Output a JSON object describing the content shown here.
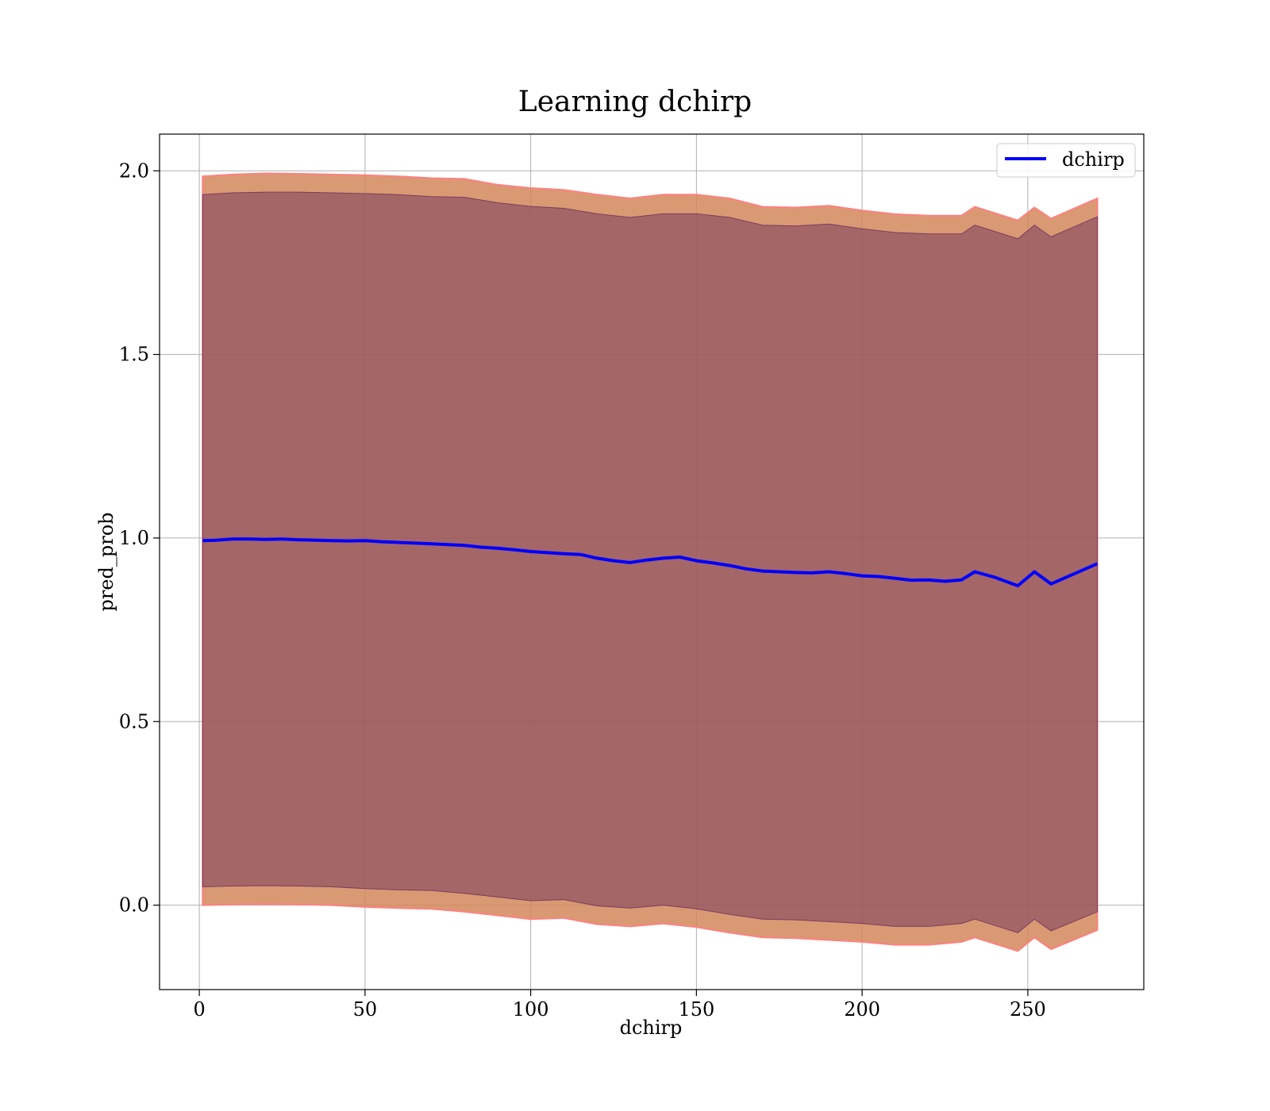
{
  "chart_data": {
    "type": "line",
    "title": "Learning dchirp",
    "xlabel": "dchirp",
    "ylabel": "pred_prob",
    "xlim": [
      -12,
      285
    ],
    "ylim": [
      -0.23,
      2.1
    ],
    "xticks": [
      0,
      50,
      100,
      150,
      200,
      250
    ],
    "yticks": [
      0.0,
      0.5,
      1.0,
      1.5,
      2.0
    ],
    "xtick_labels": [
      "0",
      "50",
      "100",
      "150",
      "200",
      "250"
    ],
    "ytick_labels": [
      "0.0",
      "0.5",
      "1.0",
      "1.5",
      "2.0"
    ],
    "grid": true,
    "legend_position": "top-right",
    "series": [
      {
        "name": "dchirp",
        "color": "#0000ff",
        "x": [
          1,
          5,
          10,
          15,
          20,
          25,
          30,
          35,
          40,
          45,
          50,
          55,
          60,
          65,
          70,
          75,
          80,
          85,
          90,
          95,
          100,
          105,
          110,
          115,
          120,
          125,
          130,
          135,
          140,
          145,
          150,
          155,
          160,
          165,
          170,
          175,
          180,
          185,
          190,
          195,
          200,
          205,
          210,
          215,
          220,
          225,
          230,
          234,
          240,
          247,
          252,
          257,
          271
        ],
        "y": [
          0.993,
          0.994,
          0.997,
          0.997,
          0.996,
          0.997,
          0.995,
          0.994,
          0.993,
          0.992,
          0.993,
          0.99,
          0.988,
          0.986,
          0.984,
          0.982,
          0.98,
          0.975,
          0.972,
          0.968,
          0.963,
          0.96,
          0.957,
          0.955,
          0.945,
          0.938,
          0.933,
          0.94,
          0.945,
          0.948,
          0.938,
          0.932,
          0.925,
          0.916,
          0.91,
          0.908,
          0.906,
          0.905,
          0.908,
          0.903,
          0.897,
          0.895,
          0.89,
          0.885,
          0.886,
          0.882,
          0.886,
          0.908,
          0.893,
          0.87,
          0.908,
          0.875,
          0.93
        ]
      }
    ],
    "bands": [
      {
        "label": "",
        "color": "#d2875a",
        "edge_color": "#ff8080",
        "x": [
          1,
          10,
          20,
          30,
          40,
          50,
          60,
          70,
          80,
          90,
          100,
          110,
          120,
          130,
          140,
          150,
          160,
          170,
          180,
          190,
          200,
          210,
          220,
          230,
          234,
          247,
          252,
          257,
          271
        ],
        "upper": [
          1.985,
          1.99,
          1.993,
          1.992,
          1.99,
          1.988,
          1.985,
          1.98,
          1.978,
          1.962,
          1.953,
          1.948,
          1.935,
          1.925,
          1.935,
          1.935,
          1.925,
          1.902,
          1.9,
          1.905,
          1.892,
          1.882,
          1.878,
          1.878,
          1.902,
          1.865,
          1.9,
          1.87,
          1.925
        ],
        "lower": [
          0.0,
          0.002,
          0.003,
          0.002,
          0.0,
          -0.005,
          -0.008,
          -0.01,
          -0.018,
          -0.028,
          -0.038,
          -0.035,
          -0.052,
          -0.058,
          -0.05,
          -0.06,
          -0.075,
          -0.088,
          -0.09,
          -0.095,
          -0.1,
          -0.108,
          -0.108,
          -0.1,
          -0.088,
          -0.125,
          -0.088,
          -0.12,
          -0.068
        ]
      },
      {
        "label": "",
        "color": "#7a3c5f",
        "edge_color": "#7a3c5f",
        "x": [
          1,
          10,
          20,
          30,
          40,
          50,
          60,
          70,
          80,
          90,
          100,
          110,
          120,
          130,
          140,
          150,
          160,
          170,
          180,
          190,
          200,
          210,
          220,
          230,
          234,
          247,
          252,
          257,
          271
        ],
        "upper": [
          1.935,
          1.94,
          1.942,
          1.942,
          1.94,
          1.938,
          1.935,
          1.93,
          1.928,
          1.913,
          1.903,
          1.898,
          1.883,
          1.873,
          1.883,
          1.883,
          1.873,
          1.852,
          1.85,
          1.855,
          1.842,
          1.832,
          1.828,
          1.828,
          1.852,
          1.815,
          1.852,
          1.82,
          1.875
        ],
        "lower": [
          0.05,
          0.052,
          0.053,
          0.052,
          0.05,
          0.045,
          0.042,
          0.04,
          0.032,
          0.022,
          0.012,
          0.015,
          -0.002,
          -0.008,
          0.0,
          -0.01,
          -0.025,
          -0.038,
          -0.04,
          -0.045,
          -0.05,
          -0.058,
          -0.058,
          -0.05,
          -0.038,
          -0.075,
          -0.038,
          -0.07,
          -0.018
        ]
      }
    ]
  }
}
